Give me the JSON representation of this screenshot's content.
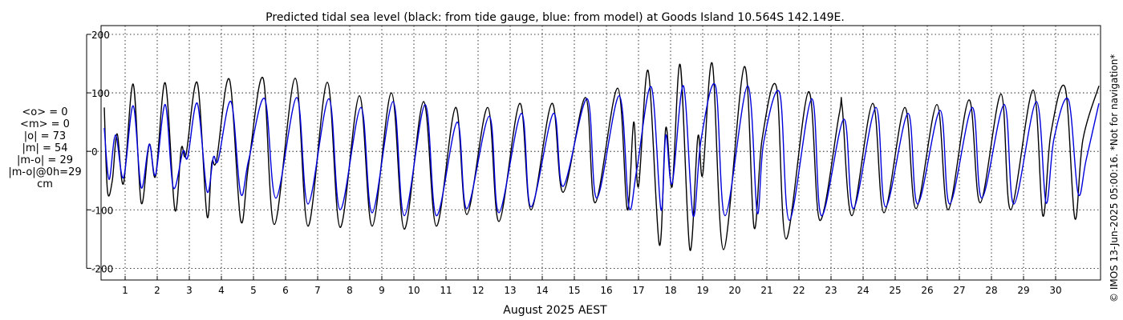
{
  "chart_data": {
    "type": "line",
    "title": "Predicted tidal sea level (black: from tide gauge, blue: from model) at Goods Island 10.564S 142.149E.",
    "xlabel": "August 2025 AEST",
    "ylabel": "",
    "x_unit": "day of August 2025",
    "xlim": [
      0.25,
      31.4
    ],
    "ylim": [
      -220,
      215
    ],
    "yticks": [
      -200,
      -100,
      0,
      100,
      200
    ],
    "xticks": [
      1,
      2,
      3,
      4,
      5,
      6,
      7,
      8,
      9,
      10,
      11,
      12,
      13,
      14,
      15,
      16,
      17,
      18,
      19,
      20,
      21,
      22,
      23,
      24,
      25,
      26,
      27,
      28,
      29,
      30
    ],
    "grid": true,
    "series": [
      {
        "name": "from tide gauge",
        "color": "#000000",
        "points": [
          [
            0.35,
            75
          ],
          [
            0.45,
            -68
          ],
          [
            0.6,
            -50
          ],
          [
            0.75,
            30
          ],
          [
            0.95,
            -55
          ],
          [
            1.25,
            115
          ],
          [
            1.5,
            -88
          ],
          [
            1.75,
            12
          ],
          [
            1.95,
            -42
          ],
          [
            2.25,
            117
          ],
          [
            2.55,
            -100
          ],
          [
            2.75,
            5
          ],
          [
            2.9,
            -5
          ],
          [
            3.25,
            117
          ],
          [
            3.55,
            -110
          ],
          [
            3.7,
            -20
          ],
          [
            3.85,
            -15
          ],
          [
            4.25,
            123
          ],
          [
            4.6,
            -118
          ],
          [
            4.85,
            -22
          ],
          [
            5.3,
            125
          ],
          [
            5.65,
            -125
          ],
          [
            6.3,
            125
          ],
          [
            6.7,
            -128
          ],
          [
            7.3,
            118
          ],
          [
            7.7,
            -130
          ],
          [
            8.3,
            95
          ],
          [
            8.7,
            -128
          ],
          [
            9.3,
            100
          ],
          [
            9.7,
            -133
          ],
          [
            10.3,
            85
          ],
          [
            10.7,
            -128
          ],
          [
            11.3,
            75
          ],
          [
            11.65,
            -108
          ],
          [
            12.3,
            75
          ],
          [
            12.65,
            -120
          ],
          [
            13.3,
            82
          ],
          [
            13.65,
            -100
          ],
          [
            14.3,
            82
          ],
          [
            14.65,
            -70
          ],
          [
            15.35,
            92
          ],
          [
            15.65,
            -88
          ],
          [
            16.35,
            108
          ],
          [
            16.65,
            -100
          ],
          [
            16.85,
            50
          ],
          [
            17.0,
            -60
          ],
          [
            17.3,
            138
          ],
          [
            17.65,
            -160
          ],
          [
            17.85,
            40
          ],
          [
            18.05,
            -60
          ],
          [
            18.3,
            148
          ],
          [
            18.6,
            -168
          ],
          [
            18.85,
            25
          ],
          [
            19.0,
            -40
          ],
          [
            19.3,
            150
          ],
          [
            19.65,
            -168
          ],
          [
            20.3,
            145
          ],
          [
            20.6,
            -130
          ],
          [
            20.85,
            20
          ],
          [
            21.3,
            110
          ],
          [
            21.6,
            -150
          ],
          [
            22.3,
            102
          ],
          [
            22.65,
            -118
          ],
          [
            23.25,
            62
          ],
          [
            23.35,
            75
          ],
          [
            23.65,
            -110
          ],
          [
            24.3,
            82
          ],
          [
            24.65,
            -105
          ],
          [
            25.3,
            75
          ],
          [
            25.65,
            -98
          ],
          [
            26.3,
            80
          ],
          [
            26.65,
            -100
          ],
          [
            27.3,
            88
          ],
          [
            27.65,
            -88
          ],
          [
            28.3,
            98
          ],
          [
            28.6,
            -100
          ],
          [
            29.3,
            105
          ],
          [
            29.6,
            -110
          ],
          [
            29.85,
            30
          ],
          [
            30.3,
            108
          ],
          [
            30.6,
            -115
          ],
          [
            30.85,
            20
          ],
          [
            31.35,
            112
          ]
        ]
      },
      {
        "name": "from model",
        "color": "#0000dd",
        "points": [
          [
            0.35,
            40
          ],
          [
            0.5,
            -48
          ],
          [
            0.7,
            28
          ],
          [
            0.95,
            -45
          ],
          [
            1.25,
            78
          ],
          [
            1.5,
            -62
          ],
          [
            1.75,
            12
          ],
          [
            1.95,
            -40
          ],
          [
            2.25,
            80
          ],
          [
            2.5,
            -62
          ],
          [
            2.8,
            0
          ],
          [
            2.95,
            -10
          ],
          [
            3.25,
            82
          ],
          [
            3.55,
            -68
          ],
          [
            3.75,
            -10
          ],
          [
            3.9,
            -15
          ],
          [
            4.3,
            85
          ],
          [
            4.6,
            -72
          ],
          [
            4.85,
            -15
          ],
          [
            5.35,
            90
          ],
          [
            5.7,
            -80
          ],
          [
            6.35,
            92
          ],
          [
            6.7,
            -90
          ],
          [
            7.35,
            90
          ],
          [
            7.7,
            -100
          ],
          [
            8.35,
            75
          ],
          [
            8.7,
            -105
          ],
          [
            9.35,
            85
          ],
          [
            9.7,
            -110
          ],
          [
            10.35,
            80
          ],
          [
            10.7,
            -110
          ],
          [
            11.35,
            50
          ],
          [
            11.65,
            -98
          ],
          [
            12.35,
            60
          ],
          [
            12.65,
            -105
          ],
          [
            13.35,
            65
          ],
          [
            13.65,
            -95
          ],
          [
            14.35,
            65
          ],
          [
            14.65,
            -60
          ],
          [
            15.4,
            90
          ],
          [
            15.7,
            -80
          ],
          [
            16.4,
            95
          ],
          [
            16.7,
            -95
          ],
          [
            16.95,
            -30
          ],
          [
            17.4,
            110
          ],
          [
            17.7,
            -100
          ],
          [
            17.85,
            28
          ],
          [
            18.05,
            -55
          ],
          [
            18.4,
            112
          ],
          [
            18.7,
            -110
          ],
          [
            18.95,
            20
          ],
          [
            19.4,
            112
          ],
          [
            19.7,
            -110
          ],
          [
            20.4,
            112
          ],
          [
            20.7,
            -105
          ],
          [
            20.9,
            15
          ],
          [
            21.4,
            100
          ],
          [
            21.7,
            -118
          ],
          [
            22.4,
            90
          ],
          [
            22.7,
            -110
          ],
          [
            23.4,
            55
          ],
          [
            23.7,
            -98
          ],
          [
            24.4,
            75
          ],
          [
            24.7,
            -95
          ],
          [
            25.4,
            65
          ],
          [
            25.7,
            -90
          ],
          [
            26.4,
            70
          ],
          [
            26.7,
            -90
          ],
          [
            27.4,
            75
          ],
          [
            27.7,
            -80
          ],
          [
            28.4,
            80
          ],
          [
            28.7,
            -90
          ],
          [
            29.4,
            85
          ],
          [
            29.7,
            -88
          ],
          [
            29.95,
            22
          ],
          [
            30.4,
            88
          ],
          [
            30.7,
            -72
          ],
          [
            30.95,
            -15
          ],
          [
            31.35,
            82
          ]
        ]
      }
    ]
  },
  "stats": [
    "<o> = 0",
    "<m> = 0",
    "|o| = 73",
    "|m| = 54",
    "|m-o| = 29",
    "|m-o|@0h=29",
    "cm"
  ],
  "side_note": "© IMOS 13-Jun-2025 05:00:16. *Not for navigation*"
}
